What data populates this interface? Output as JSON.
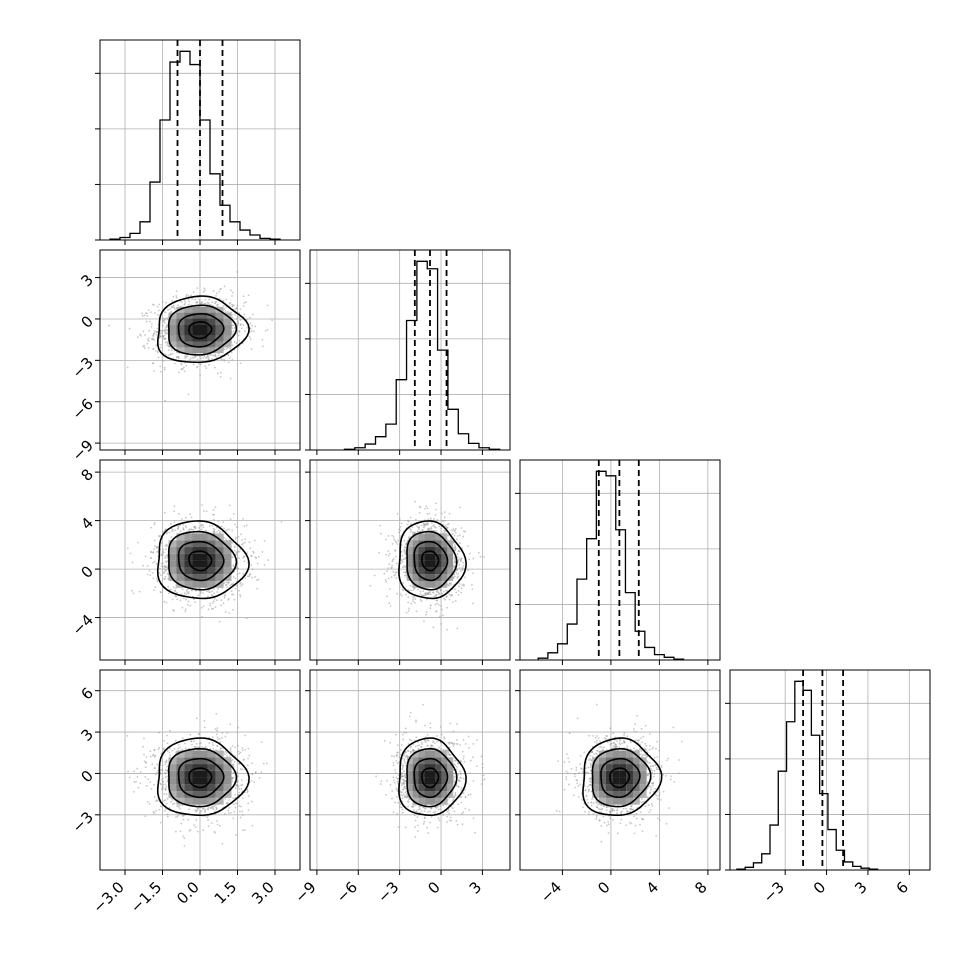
{
  "figure": {
    "type": "corner-plot",
    "colors": {
      "ink": "#000000",
      "grid": "#b0b0b0",
      "scatter": "#9a9a9a"
    }
  },
  "chart_data": {
    "type": "corner",
    "grid": true,
    "variables": [
      {
        "index": 0,
        "range": [
          -4.0,
          4.0
        ],
        "ticks": [
          -3.0,
          -1.5,
          0.0,
          1.5,
          3.0
        ],
        "tick_labels": [
          "−3.0",
          "−1.5",
          "0.0",
          "1.5",
          "3.0"
        ],
        "quantiles": [
          -0.9,
          0.0,
          0.9
        ],
        "hist_edges_start": -3.6,
        "hist_bin_width": 0.4,
        "hist_counts": [
          1,
          3,
          8,
          22,
          70,
          145,
          215,
          228,
          212,
          145,
          80,
          42,
          22,
          12,
          6,
          2,
          1
        ],
        "center": 0.0,
        "sigma": 0.9
      },
      {
        "index": 1,
        "range": [
          -9.5,
          5.0
        ],
        "ticks": [
          -9,
          -6,
          -3,
          0,
          3
        ],
        "tick_labels": [
          "−9",
          "−6",
          "−3",
          "0",
          "3"
        ],
        "quantiles": [
          -1.9,
          -0.8,
          0.4
        ],
        "hist_edges_start": -7.0,
        "hist_bin_width": 0.75,
        "hist_counts": [
          1,
          3,
          8,
          18,
          35,
          95,
          175,
          255,
          245,
          135,
          55,
          22,
          9,
          3,
          1
        ],
        "center": -0.8,
        "sigma": 1.2
      },
      {
        "index": 2,
        "range": [
          -7.5,
          9.0
        ],
        "ticks": [
          -4,
          0,
          4,
          8
        ],
        "tick_labels": [
          "−4",
          "0",
          "4",
          "8"
        ],
        "quantiles": [
          -1.0,
          0.7,
          2.3
        ],
        "hist_edges_start": -6.0,
        "hist_bin_width": 0.8,
        "hist_counts": [
          2,
          8,
          18,
          40,
          90,
          135,
          210,
          205,
          145,
          75,
          32,
          14,
          6,
          3,
          1
        ],
        "center": 0.7,
        "sigma": 1.6
      },
      {
        "index": 3,
        "range": [
          -7.0,
          7.5
        ],
        "ticks": [
          -3,
          0,
          3,
          6
        ],
        "tick_labels": [
          "−3",
          "0",
          "3",
          "6"
        ],
        "quantiles": [
          -1.7,
          -0.3,
          1.2
        ],
        "hist_edges_start": -6.5,
        "hist_bin_width": 0.6,
        "hist_counts": [
          1,
          3,
          8,
          18,
          50,
          110,
          165,
          210,
          200,
          150,
          85,
          45,
          22,
          9,
          4,
          2,
          1
        ],
        "center": -0.3,
        "sigma": 1.4
      }
    ],
    "pairs": [
      {
        "x": 0,
        "y": 1,
        "correlation": 0.05
      },
      {
        "x": 0,
        "y": 2,
        "correlation": -0.05
      },
      {
        "x": 1,
        "y": 2,
        "correlation": -0.05
      },
      {
        "x": 0,
        "y": 3,
        "correlation": 0.0
      },
      {
        "x": 1,
        "y": 3,
        "correlation": 0.0
      },
      {
        "x": 2,
        "y": 3,
        "correlation": 0.05
      }
    ],
    "contour_levels_sigma": [
      0.5,
      1.0,
      1.5,
      2.0
    ],
    "scatter_points_per_panel": 1400
  }
}
